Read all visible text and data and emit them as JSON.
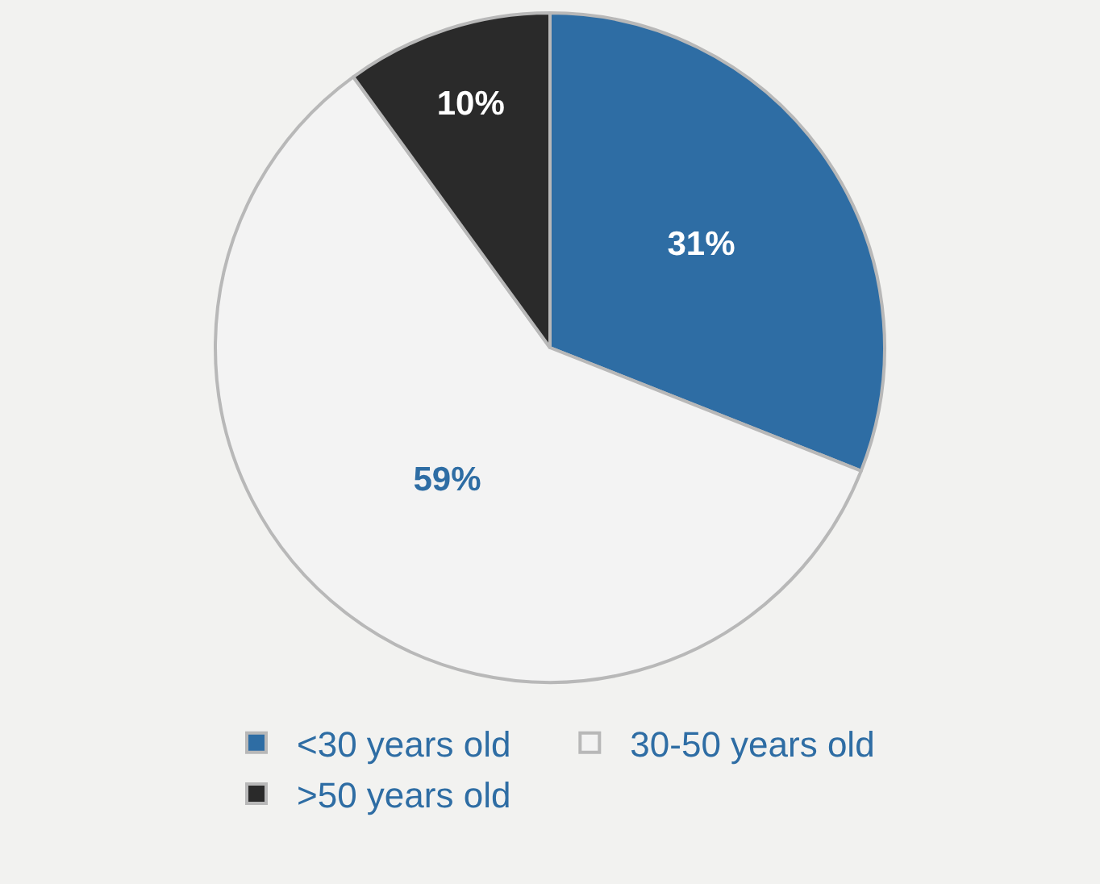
{
  "chart_data": {
    "type": "pie",
    "categories": [
      "<30 years old",
      "30-50 years old",
      ">50 years old"
    ],
    "values": [
      31,
      59,
      10
    ],
    "colors": [
      "#2e6da4",
      "#f3f3f3",
      "#2a2a2a"
    ],
    "value_labels": [
      "31%",
      "59%",
      "10%"
    ],
    "legend": "bottom"
  }
}
